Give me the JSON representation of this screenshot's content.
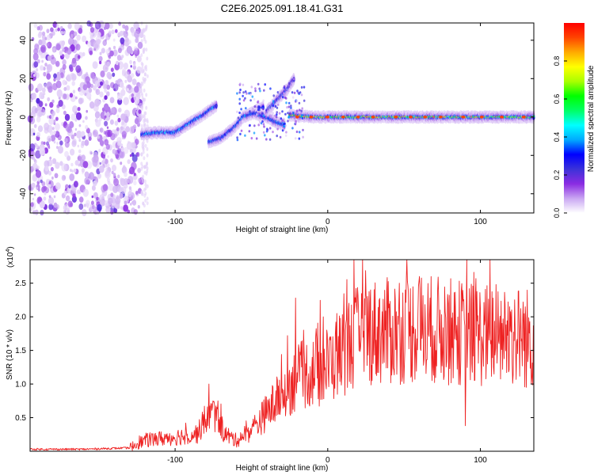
{
  "title": "C2E6.2025.091.18.41.G31",
  "chart_data": [
    {
      "type": "heatmap",
      "name": "spectrogram",
      "xlabel": "Height of straight line (km)",
      "ylabel": "Frequency (Hz)",
      "xlim": [
        -195,
        135
      ],
      "ylim": [
        -50,
        49
      ],
      "xticks": [
        -100,
        0,
        100
      ],
      "yticks": [
        -40,
        -20,
        0,
        20,
        40
      ],
      "colorbar": {
        "label": "Normalized spectral amplitude",
        "range": [
          0,
          1
        ],
        "ticks": [
          "0.0",
          "0.2",
          "0.4",
          "0.6",
          "0.8"
        ],
        "colors": [
          "#ffffff",
          "#c9a6f2",
          "#8a2be2",
          "#3b32d9",
          "#0000ff",
          "#00aaff",
          "#00ffff",
          "#00ff66",
          "#00ff00",
          "#aaff00",
          "#ffff00",
          "#ffaa00",
          "#ff4400",
          "#ff0000"
        ]
      },
      "noise_region": {
        "x_range": [
          -195,
          -122
        ],
        "y_range": [
          -50,
          49
        ],
        "level": 0.12
      },
      "ridge_segments": [
        {
          "points": [
            [
              -122,
              -9
            ],
            [
              -110,
              -8
            ],
            [
              -100,
              -8
            ],
            [
              -90,
              -3
            ],
            [
              -80,
              2
            ],
            [
              -73,
              6
            ]
          ],
          "peak": 0.45
        },
        {
          "points": [
            [
              -78,
              -13
            ],
            [
              -70,
              -11
            ],
            [
              -62,
              -6
            ],
            [
              -55,
              0
            ],
            [
              -48,
              3
            ],
            [
              -42,
              5
            ]
          ],
          "peak": 0.4
        },
        {
          "points": [
            [
              -56,
              0
            ],
            [
              -48,
              2
            ],
            [
              -40,
              0
            ],
            [
              -33,
              -3
            ],
            [
              -28,
              -4
            ]
          ],
          "peak": 0.4
        },
        {
          "points": [
            [
              -40,
              3
            ],
            [
              -32,
              10
            ],
            [
              -26,
              15
            ],
            [
              -22,
              20
            ]
          ],
          "peak": 0.2
        },
        {
          "points": [
            [
              -25,
              1
            ],
            [
              -10,
              0
            ],
            [
              20,
              0
            ],
            [
              50,
              0
            ],
            [
              80,
              0
            ],
            [
              110,
              0
            ],
            [
              135,
              0
            ]
          ],
          "peak": 0.9
        }
      ]
    },
    {
      "type": "line",
      "name": "snr",
      "xlabel": "Height of straight line (km)",
      "ylabel": "SNR (10 * v/v)",
      "y_multiplier": "(x10",
      "y_multiplier_exp": "4",
      "y_multiplier_close": ")",
      "xlim": [
        -195,
        135
      ],
      "ylim": [
        0,
        2.85
      ],
      "xticks": [
        -100,
        0,
        100
      ],
      "yticks": [
        0.5,
        1.0,
        1.5,
        2.0,
        2.5
      ],
      "ytick_labels": [
        "0.5",
        "1.0",
        "1.5",
        "2.0",
        "2.5"
      ],
      "color": "#ee2222",
      "envelope": [
        [
          -195,
          0.03
        ],
        [
          -160,
          0.03
        ],
        [
          -130,
          0.05
        ],
        [
          -120,
          0.15
        ],
        [
          -100,
          0.2
        ],
        [
          -85,
          0.25
        ],
        [
          -78,
          0.55
        ],
        [
          -72,
          0.5
        ],
        [
          -68,
          0.25
        ],
        [
          -60,
          0.15
        ],
        [
          -50,
          0.3
        ],
        [
          -40,
          0.55
        ],
        [
          -30,
          0.8
        ],
        [
          -22,
          1.0
        ],
        [
          -15,
          1.1
        ],
        [
          -5,
          1.15
        ],
        [
          5,
          1.3
        ],
        [
          15,
          1.55
        ],
        [
          25,
          1.7
        ],
        [
          40,
          1.7
        ],
        [
          60,
          1.75
        ],
        [
          80,
          1.7
        ],
        [
          100,
          1.65
        ],
        [
          120,
          1.65
        ],
        [
          135,
          1.6
        ]
      ],
      "peaks": [
        [
          -78,
          1.0
        ],
        [
          -21,
          2.28
        ],
        [
          -3,
          2.0
        ],
        [
          6,
          2.05
        ],
        [
          28,
          2.4
        ],
        [
          47,
          2.5
        ],
        [
          60,
          2.6
        ],
        [
          79,
          2.2
        ],
        [
          91,
          2.85
        ],
        [
          119,
          2.15
        ],
        [
          130,
          1.85
        ]
      ],
      "dips": [
        [
          90,
          0.38
        ],
        [
          130,
          0.95
        ]
      ]
    }
  ]
}
